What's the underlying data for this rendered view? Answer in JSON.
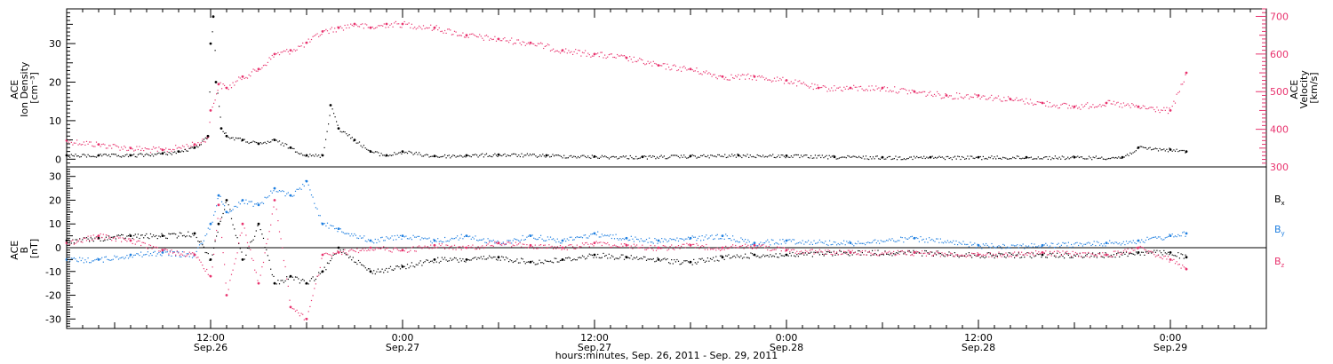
{
  "chart_data": [
    {
      "type": "scatter",
      "panel": "plasma",
      "xlim": [
        "2011-09-26T03:00",
        "2011-09-29T06:00"
      ],
      "left_axis": {
        "label_lines": [
          "ACE",
          "Ion Density",
          "[cm⁻³]"
        ],
        "ylim": [
          -2,
          39
        ],
        "ticks": [
          0,
          10,
          20,
          30
        ],
        "color": "#000000"
      },
      "right_axis": {
        "label_lines": [
          "ACE",
          "Velocity",
          "[km/s]"
        ],
        "ylim": [
          300,
          720
        ],
        "ticks": [
          300,
          400,
          500,
          600,
          700
        ],
        "color": "#e8336e"
      },
      "series": [
        {
          "axis": "left",
          "color": "#000000",
          "x": [
            "2011-09-26T03:00",
            "2011-09-26T05:00",
            "2011-09-26T07:00",
            "2011-09-26T09:00",
            "2011-09-26T10:00",
            "2011-09-26T11:00",
            "2011-09-26T11:50",
            "2011-09-26T12:00",
            "2011-09-26T12:10",
            "2011-09-26T12:20",
            "2011-09-26T12:40",
            "2011-09-26T13:00",
            "2011-09-26T14:00",
            "2011-09-26T15:00",
            "2011-09-26T16:00",
            "2011-09-26T17:00",
            "2011-09-26T18:00",
            "2011-09-26T19:00",
            "2011-09-26T19:30",
            "2011-09-26T20:00",
            "2011-09-26T21:00",
            "2011-09-26T22:00",
            "2011-09-26T23:00",
            "2011-09-27T00:00",
            "2011-09-27T02:00",
            "2011-09-27T04:00",
            "2011-09-27T06:00",
            "2011-09-27T09:00",
            "2011-09-27T12:00",
            "2011-09-27T15:00",
            "2011-09-27T18:00",
            "2011-09-27T21:00",
            "2011-09-28T00:00",
            "2011-09-28T03:00",
            "2011-09-28T06:00",
            "2011-09-28T09:00",
            "2011-09-28T12:00",
            "2011-09-28T15:00",
            "2011-09-28T18:00",
            "2011-09-28T21:00",
            "2011-09-28T22:00",
            "2011-09-29T00:00",
            "2011-09-29T01:00"
          ],
          "y": [
            1,
            1,
            1,
            1.5,
            2,
            3,
            6,
            30,
            37,
            20,
            8,
            6,
            5,
            4,
            5,
            3,
            1,
            1,
            14,
            8,
            5,
            2,
            1,
            2,
            0.8,
            1,
            1.2,
            1,
            0.7,
            0.6,
            0.8,
            1,
            0.9,
            0.6,
            0.5,
            0.5,
            0.5,
            0.5,
            0.5,
            0.5,
            3,
            2.5,
            2
          ]
        },
        {
          "axis": "right",
          "color": "#e8336e",
          "x": [
            "2011-09-26T03:00",
            "2011-09-26T05:00",
            "2011-09-26T07:00",
            "2011-09-26T09:00",
            "2011-09-26T11:00",
            "2011-09-26T11:50",
            "2011-09-26T12:00",
            "2011-09-26T12:30",
            "2011-09-26T13:00",
            "2011-09-26T14:00",
            "2011-09-26T15:00",
            "2011-09-26T16:00",
            "2011-09-26T17:00",
            "2011-09-26T18:00",
            "2011-09-26T19:00",
            "2011-09-26T20:00",
            "2011-09-26T21:00",
            "2011-09-26T22:00",
            "2011-09-26T23:00",
            "2011-09-27T00:00",
            "2011-09-27T02:00",
            "2011-09-27T04:00",
            "2011-09-27T06:00",
            "2011-09-27T08:00",
            "2011-09-27T10:00",
            "2011-09-27T12:00",
            "2011-09-27T14:00",
            "2011-09-27T16:00",
            "2011-09-27T18:00",
            "2011-09-27T20:00",
            "2011-09-27T22:00",
            "2011-09-28T00:00",
            "2011-09-28T02:00",
            "2011-09-28T04:00",
            "2011-09-28T06:00",
            "2011-09-28T08:00",
            "2011-09-28T10:00",
            "2011-09-28T12:00",
            "2011-09-28T14:00",
            "2011-09-28T16:00",
            "2011-09-28T18:00",
            "2011-09-28T20:00",
            "2011-09-28T22:00",
            "2011-09-29T00:00",
            "2011-09-29T01:00"
          ],
          "y": [
            370,
            360,
            350,
            345,
            360,
            380,
            450,
            520,
            510,
            540,
            560,
            600,
            610,
            630,
            660,
            670,
            680,
            670,
            680,
            680,
            670,
            650,
            640,
            630,
            610,
            600,
            590,
            570,
            560,
            540,
            540,
            530,
            510,
            510,
            510,
            500,
            490,
            490,
            480,
            470,
            460,
            470,
            460,
            450,
            550
          ]
        }
      ]
    },
    {
      "type": "scatter",
      "panel": "magnetic-field",
      "xlim": [
        "2011-09-26T03:00",
        "2011-09-29T06:00"
      ],
      "left_axis": {
        "label_lines": [
          "ACE",
          "B",
          "[nT]"
        ],
        "ylim": [
          -34,
          34
        ],
        "ticks": [
          -30,
          -20,
          -10,
          0,
          10,
          20,
          30
        ]
      },
      "zero_line": true,
      "xlabel": "hours:minutes, Sep. 26, 2011 - Sep. 29, 2011",
      "x_ticks": [
        {
          "time": "2011-09-26T12:00",
          "label": "12:00",
          "sublabel": "Sep.26"
        },
        {
          "time": "2011-09-27T00:00",
          "label": "0:00",
          "sublabel": "Sep.27"
        },
        {
          "time": "2011-09-27T12:00",
          "label": "12:00",
          "sublabel": "Sep.27"
        },
        {
          "time": "2011-09-28T00:00",
          "label": "0:00",
          "sublabel": "Sep.28"
        },
        {
          "time": "2011-09-28T12:00",
          "label": "12:00",
          "sublabel": "Sep.28"
        },
        {
          "time": "2011-09-29T00:00",
          "label": "0:00",
          "sublabel": "Sep.29"
        }
      ],
      "series": [
        {
          "label": "B",
          "subscript": "x",
          "color": "#000000",
          "x": [
            "2011-09-26T03:00",
            "2011-09-26T05:00",
            "2011-09-26T07:00",
            "2011-09-26T09:00",
            "2011-09-26T11:00",
            "2011-09-26T12:00",
            "2011-09-26T12:30",
            "2011-09-26T13:00",
            "2011-09-26T14:00",
            "2011-09-26T15:00",
            "2011-09-26T16:00",
            "2011-09-26T17:00",
            "2011-09-26T18:00",
            "2011-09-26T19:00",
            "2011-09-26T20:00",
            "2011-09-26T22:00",
            "2011-09-27T00:00",
            "2011-09-27T02:00",
            "2011-09-27T04:00",
            "2011-09-27T06:00",
            "2011-09-27T08:00",
            "2011-09-27T10:00",
            "2011-09-27T12:00",
            "2011-09-27T14:00",
            "2011-09-27T16:00",
            "2011-09-27T18:00",
            "2011-09-27T20:00",
            "2011-09-27T22:00",
            "2011-09-28T00:00",
            "2011-09-28T04:00",
            "2011-09-28T08:00",
            "2011-09-28T12:00",
            "2011-09-28T16:00",
            "2011-09-28T20:00",
            "2011-09-28T22:00",
            "2011-09-29T00:00",
            "2011-09-29T01:00"
          ],
          "y": [
            3,
            4,
            5,
            5,
            6,
            -5,
            10,
            20,
            -5,
            10,
            -15,
            -12,
            -15,
            -10,
            0,
            -10,
            -8,
            -5,
            -5,
            -4,
            -6,
            -5,
            -3,
            -4,
            -5,
            -6,
            -4,
            -3,
            -3,
            -2,
            -2,
            -3,
            -3,
            -3,
            -2,
            -2,
            -4
          ]
        },
        {
          "label": "B",
          "subscript": "y",
          "color": "#1f7fe0",
          "x": [
            "2011-09-26T03:00",
            "2011-09-26T05:00",
            "2011-09-26T07:00",
            "2011-09-26T09:00",
            "2011-09-26T11:00",
            "2011-09-26T12:00",
            "2011-09-26T12:30",
            "2011-09-26T13:00",
            "2011-09-26T14:00",
            "2011-09-26T15:00",
            "2011-09-26T16:00",
            "2011-09-26T17:00",
            "2011-09-26T18:00",
            "2011-09-26T19:00",
            "2011-09-26T20:00",
            "2011-09-26T22:00",
            "2011-09-27T00:00",
            "2011-09-27T02:00",
            "2011-09-27T04:00",
            "2011-09-27T06:00",
            "2011-09-27T08:00",
            "2011-09-27T10:00",
            "2011-09-27T12:00",
            "2011-09-27T14:00",
            "2011-09-27T16:00",
            "2011-09-27T18:00",
            "2011-09-27T20:00",
            "2011-09-27T22:00",
            "2011-09-28T00:00",
            "2011-09-28T04:00",
            "2011-09-28T08:00",
            "2011-09-28T12:00",
            "2011-09-28T16:00",
            "2011-09-28T20:00",
            "2011-09-28T22:00",
            "2011-09-29T00:00",
            "2011-09-29T01:00"
          ],
          "y": [
            -5,
            -5,
            -3,
            -2,
            -3,
            10,
            22,
            15,
            20,
            18,
            25,
            22,
            28,
            10,
            8,
            3,
            5,
            3,
            5,
            2,
            5,
            3,
            6,
            4,
            3,
            4,
            5,
            2,
            3,
            2,
            4,
            1,
            1,
            2,
            3,
            5,
            6
          ]
        },
        {
          "label": "B",
          "subscript": "z",
          "color": "#e8336e",
          "x": [
            "2011-09-26T03:00",
            "2011-09-26T05:00",
            "2011-09-26T07:00",
            "2011-09-26T09:00",
            "2011-09-26T11:00",
            "2011-09-26T12:00",
            "2011-09-26T12:30",
            "2011-09-26T13:00",
            "2011-09-26T14:00",
            "2011-09-26T15:00",
            "2011-09-26T16:00",
            "2011-09-26T17:00",
            "2011-09-26T18:00",
            "2011-09-26T19:00",
            "2011-09-26T20:00",
            "2011-09-26T22:00",
            "2011-09-27T00:00",
            "2011-09-27T02:00",
            "2011-09-27T04:00",
            "2011-09-27T06:00",
            "2011-09-27T08:00",
            "2011-09-27T10:00",
            "2011-09-27T12:00",
            "2011-09-27T14:00",
            "2011-09-27T16:00",
            "2011-09-27T18:00",
            "2011-09-27T20:00",
            "2011-09-27T22:00",
            "2011-09-28T00:00",
            "2011-09-28T04:00",
            "2011-09-28T08:00",
            "2011-09-28T12:00",
            "2011-09-28T16:00",
            "2011-09-28T20:00",
            "2011-09-28T22:00",
            "2011-09-29T00:00",
            "2011-09-29T01:00"
          ],
          "y": [
            2,
            5,
            3,
            -1,
            -3,
            -12,
            18,
            -20,
            10,
            -15,
            20,
            -25,
            -30,
            -3,
            -2,
            0,
            -1,
            1,
            0,
            2,
            1,
            0,
            2,
            1,
            0,
            1,
            0,
            1,
            -1,
            -2,
            -2,
            -3,
            -2,
            -3,
            0,
            -5,
            -9
          ]
        }
      ]
    }
  ]
}
